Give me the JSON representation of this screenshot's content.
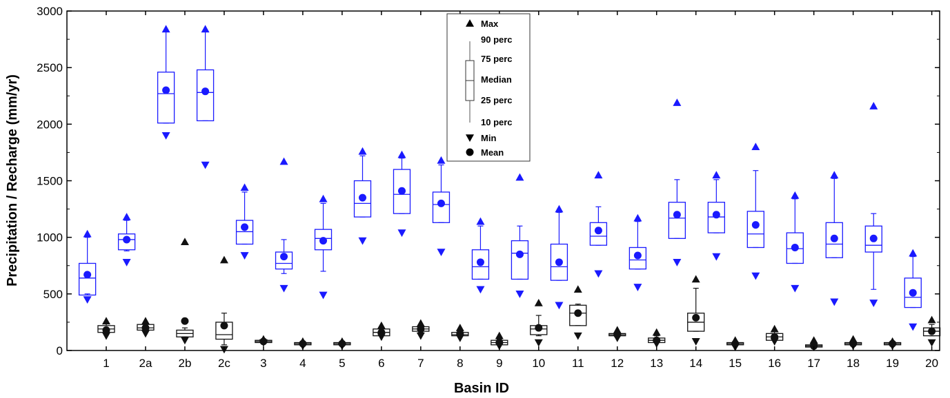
{
  "chart_data": {
    "type": "box",
    "xlabel": "Basin ID",
    "ylabel": "Precipitation / Recharge (mm/yr)",
    "ylim": [
      0,
      3000
    ],
    "yticks": [
      0,
      500,
      1000,
      1500,
      2000,
      2500,
      3000
    ],
    "categories": [
      "1",
      "2a",
      "2b",
      "2c",
      "3",
      "4",
      "5",
      "6",
      "7",
      "8",
      "9",
      "10",
      "11",
      "12",
      "13",
      "14",
      "15",
      "16",
      "17",
      "18",
      "19",
      "20"
    ],
    "legend": {
      "max": "Max",
      "p90": "90 perc",
      "p75": "75 perc",
      "median": "Median",
      "p25": "25 perc",
      "p10": "10 perc",
      "min": "Min",
      "mean": "Mean"
    },
    "colors": {
      "precipitation": "#1a1aff",
      "recharge": "#111111"
    },
    "series": [
      {
        "color": "blue",
        "boxes": [
          {
            "cat": "1",
            "min": 450,
            "p10": 500,
            "p25": 490,
            "median": 640,
            "p75": 770,
            "p90": 1000,
            "max": 1030,
            "mean": 670
          },
          {
            "cat": "2a",
            "min": 780,
            "p10": 880,
            "p25": 890,
            "median": 980,
            "p75": 1030,
            "p90": 1150,
            "max": 1180,
            "mean": 980
          },
          {
            "cat": "2b",
            "min": 1900,
            "p10": 2010,
            "p25": 2010,
            "median": 2270,
            "p75": 2460,
            "p90": 2820,
            "max": 2840,
            "mean": 2300
          },
          {
            "cat": "2c",
            "min": 1640,
            "p10": 2030,
            "p25": 2030,
            "median": 2280,
            "p75": 2480,
            "p90": 2820,
            "max": 2840,
            "mean": 2290
          },
          {
            "cat": "3",
            "min": 840,
            "p10": 940,
            "p25": 940,
            "median": 1050,
            "p75": 1150,
            "p90": 1400,
            "max": 1440,
            "mean": 1090
          },
          {
            "cat": "4",
            "min": 550,
            "p10": 680,
            "p25": 720,
            "median": 770,
            "p75": 870,
            "p90": 980,
            "max": 1670,
            "mean": 830
          },
          {
            "cat": "5",
            "min": 490,
            "p10": 700,
            "p25": 890,
            "median": 990,
            "p75": 1070,
            "p90": 1300,
            "max": 1340,
            "mean": 970
          },
          {
            "cat": "6",
            "min": 970,
            "p10": 1180,
            "p25": 1180,
            "median": 1300,
            "p75": 1500,
            "p90": 1720,
            "max": 1760,
            "mean": 1350
          },
          {
            "cat": "7",
            "min": 1040,
            "p10": 1210,
            "p25": 1210,
            "median": 1380,
            "p75": 1600,
            "p90": 1700,
            "max": 1730,
            "mean": 1410
          },
          {
            "cat": "8",
            "min": 870,
            "p10": 1130,
            "p25": 1130,
            "median": 1290,
            "p75": 1400,
            "p90": 1640,
            "max": 1680,
            "mean": 1300
          },
          {
            "cat": "9",
            "min": 540,
            "p10": 630,
            "p25": 630,
            "median": 740,
            "p75": 890,
            "p90": 1100,
            "max": 1140,
            "mean": 780
          },
          {
            "cat": "10",
            "min": 500,
            "p10": 630,
            "p25": 630,
            "median": 860,
            "p75": 970,
            "p90": 1100,
            "max": 1530,
            "mean": 850
          },
          {
            "cat": "11",
            "min": 400,
            "p10": 620,
            "p25": 620,
            "median": 740,
            "p75": 940,
            "p90": 1220,
            "max": 1250,
            "mean": 780
          },
          {
            "cat": "12",
            "min": 680,
            "p10": 930,
            "p25": 930,
            "median": 1010,
            "p75": 1130,
            "p90": 1270,
            "max": 1550,
            "mean": 1060
          },
          {
            "cat": "13",
            "min": 560,
            "p10": 720,
            "p25": 720,
            "median": 800,
            "p75": 910,
            "p90": 1140,
            "max": 1170,
            "mean": 840
          },
          {
            "cat": "14",
            "min": 780,
            "p10": 990,
            "p25": 990,
            "median": 1170,
            "p75": 1310,
            "p90": 1510,
            "max": 2190,
            "mean": 1200
          },
          {
            "cat": "15",
            "min": 830,
            "p10": 1040,
            "p25": 1040,
            "median": 1180,
            "p75": 1310,
            "p90": 1510,
            "max": 1550,
            "mean": 1200
          },
          {
            "cat": "16",
            "min": 660,
            "p10": 910,
            "p25": 910,
            "median": 1030,
            "p75": 1230,
            "p90": 1590,
            "max": 1800,
            "mean": 1110
          },
          {
            "cat": "17",
            "min": 550,
            "p10": 770,
            "p25": 770,
            "median": 900,
            "p75": 1040,
            "p90": 1340,
            "max": 1370,
            "mean": 910
          },
          {
            "cat": "18",
            "min": 430,
            "p10": 820,
            "p25": 820,
            "median": 940,
            "p75": 1130,
            "p90": 1520,
            "max": 1550,
            "mean": 990
          },
          {
            "cat": "19",
            "min": 420,
            "p10": 540,
            "p25": 870,
            "median": 930,
            "p75": 1100,
            "p90": 1210,
            "max": 2160,
            "mean": 990
          },
          {
            "cat": "20",
            "min": 210,
            "p10": 380,
            "p25": 380,
            "median": 470,
            "p75": 640,
            "p90": 830,
            "max": 860,
            "mean": 510
          }
        ]
      },
      {
        "color": "black",
        "boxes": [
          {
            "cat": "1",
            "min": 130,
            "p10": 150,
            "p25": 160,
            "median": 190,
            "p75": 220,
            "p90": 240,
            "max": 260,
            "mean": 180
          },
          {
            "cat": "2a",
            "min": 150,
            "p10": 170,
            "p25": 180,
            "median": 200,
            "p75": 230,
            "p90": 240,
            "max": 260,
            "mean": 200
          },
          {
            "cat": "2b",
            "min": 90,
            "p10": 120,
            "p25": 120,
            "median": 150,
            "p75": 180,
            "p90": 200,
            "max": 960,
            "mean": 260
          },
          {
            "cat": "2c",
            "min": 10,
            "p10": 50,
            "p25": 100,
            "median": 140,
            "p75": 250,
            "p90": 330,
            "max": 800,
            "mean": 220
          },
          {
            "cat": "3",
            "min": 70,
            "p10": 80,
            "p25": 70,
            "median": 80,
            "p75": 90,
            "p90": 100,
            "max": 100,
            "mean": 80
          },
          {
            "cat": "4",
            "min": 40,
            "p10": 50,
            "p25": 50,
            "median": 60,
            "p75": 70,
            "p90": 80,
            "max": 80,
            "mean": 60
          },
          {
            "cat": "5",
            "min": 40,
            "p10": 50,
            "p25": 50,
            "median": 60,
            "p75": 70,
            "p90": 80,
            "max": 80,
            "mean": 60
          },
          {
            "cat": "6",
            "min": 120,
            "p10": 130,
            "p25": 130,
            "median": 160,
            "p75": 190,
            "p90": 200,
            "max": 220,
            "mean": 160
          },
          {
            "cat": "7",
            "min": 130,
            "p10": 160,
            "p25": 170,
            "median": 190,
            "p75": 210,
            "p90": 220,
            "max": 240,
            "mean": 190
          },
          {
            "cat": "8",
            "min": 110,
            "p10": 130,
            "p25": 130,
            "median": 140,
            "p75": 160,
            "p90": 170,
            "max": 200,
            "mean": 150
          },
          {
            "cat": "9",
            "min": 40,
            "p10": 50,
            "p25": 50,
            "median": 70,
            "p75": 90,
            "p90": 100,
            "max": 130,
            "mean": 70
          },
          {
            "cat": "10",
            "min": 70,
            "p10": 130,
            "p25": 140,
            "median": 190,
            "p75": 220,
            "p90": 310,
            "max": 420,
            "mean": 200
          },
          {
            "cat": "11",
            "min": 130,
            "p10": 220,
            "p25": 220,
            "median": 330,
            "p75": 400,
            "p90": 410,
            "max": 540,
            "mean": 330
          },
          {
            "cat": "12",
            "min": 110,
            "p10": 120,
            "p25": 130,
            "median": 140,
            "p75": 150,
            "p90": 160,
            "max": 180,
            "mean": 140
          },
          {
            "cat": "13",
            "min": 60,
            "p10": 70,
            "p25": 70,
            "median": 90,
            "p75": 110,
            "p90": 130,
            "max": 160,
            "mean": 90
          },
          {
            "cat": "14",
            "min": 80,
            "p10": 170,
            "p25": 170,
            "median": 250,
            "p75": 330,
            "p90": 550,
            "max": 630,
            "mean": 290
          },
          {
            "cat": "15",
            "min": 30,
            "p10": 40,
            "p25": 50,
            "median": 60,
            "p75": 70,
            "p90": 80,
            "max": 90,
            "mean": 60
          },
          {
            "cat": "16",
            "min": 80,
            "p10": 90,
            "p25": 90,
            "median": 120,
            "p75": 150,
            "p90": 170,
            "max": 190,
            "mean": 120
          },
          {
            "cat": "17",
            "min": 30,
            "p10": 30,
            "p25": 30,
            "median": 40,
            "p75": 50,
            "p90": 60,
            "max": 90,
            "mean": 40
          },
          {
            "cat": "18",
            "min": 40,
            "p10": 50,
            "p25": 50,
            "median": 60,
            "p75": 70,
            "p90": 80,
            "max": 100,
            "mean": 60
          },
          {
            "cat": "19",
            "min": 40,
            "p10": 50,
            "p25": 50,
            "median": 60,
            "p75": 70,
            "p90": 70,
            "max": 80,
            "mean": 60
          },
          {
            "cat": "20",
            "min": 70,
            "p10": 130,
            "p25": 130,
            "median": 170,
            "p75": 200,
            "p90": 230,
            "max": 270,
            "mean": 170
          }
        ]
      }
    ]
  }
}
